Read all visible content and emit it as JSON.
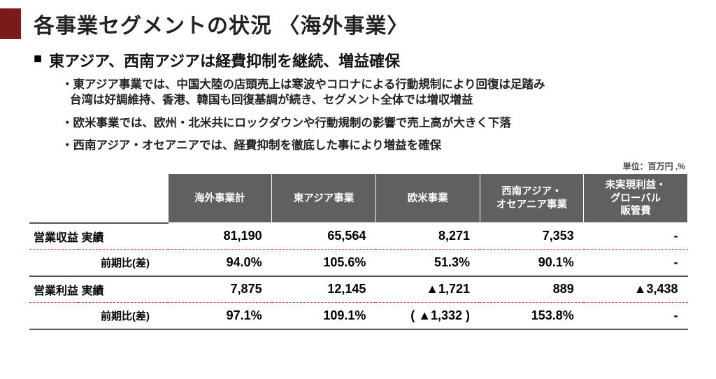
{
  "title": "各事業セグメントの状況 〈海外事業〉",
  "headline": "東アジア、西南アジアは経費抑制を継続、増益確保",
  "bullets": [
    "・東アジア事業では、中国大陸の店頭売上は寒波やコロナによる行動規制により回復は足踏み\n台湾は好調維持、香港、韓国も回復基調が続き、セグメント全体では増収増益",
    "・欧米事業では、欧州・北米共にロックダウンや行動規制の影響で売上高が大きく下落",
    "・西南アジア・オセアニアでは、経費抑制を徹底した事により増益を確保"
  ],
  "unit_label": "単位：百万円 ,%",
  "table": {
    "columns": [
      "海外事業計",
      "東アジア事業",
      "欧米事業",
      "西南アジア・\nオセアニア事業",
      "未実現利益・\nグローバル\n販管費"
    ],
    "groups": [
      {
        "label": "営業収益 実績",
        "values": [
          "81,190",
          "65,564",
          "8,271",
          "7,353",
          "-"
        ],
        "sub_label": "前期比(差)",
        "sub_values": [
          "94.0%",
          "105.6%",
          "51.3%",
          "90.1%",
          "-"
        ]
      },
      {
        "label": "営業利益 実績",
        "values": [
          "7,875",
          "12,145",
          "▲1,721",
          "889",
          "▲3,438"
        ],
        "sub_label": "前期比(差)",
        "sub_values": [
          "97.1%",
          "109.1%",
          "( ▲1,332 )",
          "153.8%",
          "-"
        ]
      }
    ]
  },
  "colors": {
    "accent": "#7a1a1a",
    "header_bg": "#606060",
    "header_fg": "#ffffff",
    "dash_border": "#b84a4a",
    "solid_border": "#555555",
    "text": "#111111"
  }
}
